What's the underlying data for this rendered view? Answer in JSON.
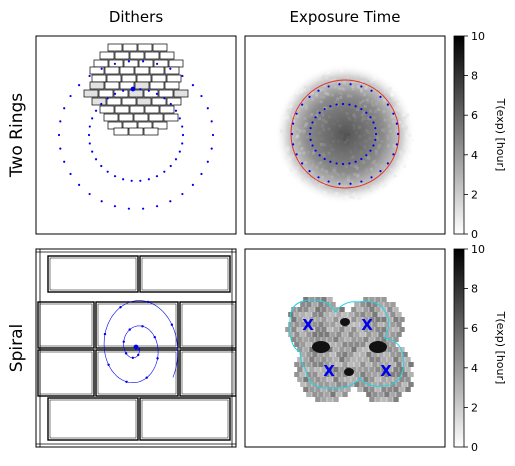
{
  "column_titles": [
    "Dithers",
    "Exposure Time"
  ],
  "row_titles": [
    "Two Rings",
    "Spiral"
  ],
  "chart_data": [
    {
      "type": "scatter",
      "panel": "Two Rings / Dithers",
      "axes_ticks": "hidden",
      "description_series": [
        {
          "name": "",
          "kind": "outer ring of dither pointings",
          "count": 30,
          "color": "#0000ee"
        },
        {
          "name": "",
          "kind": "inner ring of dither pointings",
          "count": 30,
          "color": "#0000ee"
        }
      ],
      "overlay": "detector mosaic footprint (brick pattern) centred on a single pointing"
    },
    {
      "type": "heatmap",
      "panel": "Two Rings / Exposure Time",
      "axes_ticks": "hidden",
      "colormap": "gray_r",
      "colorbar": {
        "label": "T(exp) [hour]",
        "ticks": [
          0,
          2,
          4,
          6,
          8,
          10
        ],
        "range": [
          0,
          10
        ]
      },
      "overlays": [
        {
          "kind": "circle",
          "color": "#e8302a"
        },
        {
          "kind": "dotted ring",
          "color": "#0000ee"
        }
      ]
    },
    {
      "type": "scatter",
      "panel": "Spiral / Dithers",
      "axes_ticks": "hidden",
      "description_series": [
        {
          "name": "",
          "kind": "spiral dither path",
          "count": 16,
          "color": "#0000ee"
        }
      ],
      "overlay": "detector chip grid"
    },
    {
      "type": "heatmap",
      "panel": "Spiral / Exposure Time",
      "axes_ticks": "hidden",
      "colormap": "gray_r",
      "colorbar": {
        "label": "T(exp) [hour]",
        "ticks": [
          0,
          2,
          4,
          6,
          8,
          10
        ],
        "range": [
          0,
          10
        ]
      },
      "markers": [
        {
          "symbol": "X",
          "count": 4,
          "color": "#0000ee"
        }
      ],
      "overlays": [
        {
          "kind": "outline",
          "color": "#22d3e0"
        }
      ]
    }
  ],
  "colors": {
    "dither": "#0000ee",
    "circle_red": "#e8302a",
    "outline_cyan": "#22d3e0"
  }
}
